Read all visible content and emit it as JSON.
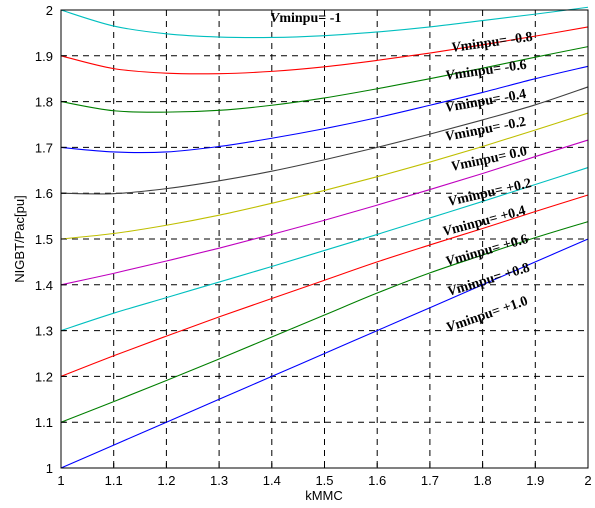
{
  "chart_data": {
    "type": "line",
    "xlabel": "kMMC",
    "ylabel": "NIGBT/Pac[pu]",
    "xlim": [
      1,
      2
    ],
    "ylim": [
      1,
      2
    ],
    "xticks": [
      "1",
      "1.1",
      "1.2",
      "1.3",
      "1.4",
      "1.5",
      "1.6",
      "1.7",
      "1.8",
      "1.9",
      "2"
    ],
    "yticks": [
      "1",
      "1.1",
      "1.2",
      "1.3",
      "1.4",
      "1.5",
      "1.6",
      "1.7",
      "1.8",
      "1.9",
      "2"
    ],
    "grid": true,
    "grid_style": "dashed",
    "x": [
      1.0,
      1.1,
      1.2,
      1.3,
      1.4,
      1.5,
      1.6,
      1.7,
      1.8,
      1.9,
      2.0
    ],
    "series": [
      {
        "name": "-1",
        "color": "#00bfbf",
        "values": [
          2.0,
          1.965,
          1.948,
          1.941,
          1.94,
          1.944,
          1.952,
          1.963,
          1.977,
          1.991,
          2.006
        ]
      },
      {
        "name": "-0.8",
        "color": "#ff0000",
        "values": [
          1.9,
          1.872,
          1.862,
          1.861,
          1.866,
          1.876,
          1.89,
          1.906,
          1.924,
          1.943,
          1.963
        ]
      },
      {
        "name": "-0.6",
        "color": "#007f00",
        "values": [
          1.8,
          1.78,
          1.777,
          1.781,
          1.792,
          1.808,
          1.828,
          1.85,
          1.873,
          1.897,
          1.92
        ]
      },
      {
        "name": "-0.4",
        "color": "#0000ff",
        "values": [
          1.7,
          1.69,
          1.69,
          1.702,
          1.72,
          1.741,
          1.765,
          1.792,
          1.82,
          1.85,
          1.877
        ]
      },
      {
        "name": "-0.2",
        "color": "#3f3f3f",
        "values": [
          1.6,
          1.599,
          1.61,
          1.627,
          1.648,
          1.673,
          1.7,
          1.729,
          1.76,
          1.793,
          1.832
        ]
      },
      {
        "name": "0.0",
        "color": "#bfbf00",
        "values": [
          1.5,
          1.512,
          1.53,
          1.552,
          1.578,
          1.606,
          1.636,
          1.668,
          1.702,
          1.738,
          1.775
        ]
      },
      {
        "name": "+0.2",
        "color": "#bf00bf",
        "values": [
          1.4,
          1.425,
          1.452,
          1.48,
          1.51,
          1.541,
          1.574,
          1.608,
          1.643,
          1.68,
          1.716
        ]
      },
      {
        "name": "+0.4",
        "color": "#00bfbf",
        "values": [
          1.3,
          1.338,
          1.372,
          1.406,
          1.44,
          1.475,
          1.51,
          1.546,
          1.582,
          1.619,
          1.656
        ]
      },
      {
        "name": "+0.6",
        "color": "#ff0000",
        "values": [
          1.2,
          1.245,
          1.288,
          1.33,
          1.37,
          1.41,
          1.45,
          1.487,
          1.523,
          1.56,
          1.596
        ]
      },
      {
        "name": "+0.8",
        "color": "#007f00",
        "values": [
          1.1,
          1.145,
          1.191,
          1.238,
          1.286,
          1.334,
          1.382,
          1.426,
          1.465,
          1.503,
          1.538
        ]
      },
      {
        "name": "+1.0",
        "color": "#0000ff",
        "values": [
          1.0,
          1.05,
          1.1,
          1.15,
          1.2,
          1.25,
          1.3,
          1.35,
          1.4,
          1.45,
          1.5
        ]
      }
    ],
    "annotations": [
      {
        "prefix": "V",
        "text": "minpu= -1"
      },
      {
        "prefix": "V",
        "text": "minpu= -0.8"
      },
      {
        "prefix": "V",
        "text": "minpu= -0.6"
      },
      {
        "prefix": "V",
        "text": "minpu= -0.4"
      },
      {
        "prefix": "V",
        "text": "minpu= -0.2"
      },
      {
        "prefix": "V",
        "text": "minpu=  0.0"
      },
      {
        "prefix": "V",
        "text": "minpu= +0.2"
      },
      {
        "prefix": "V",
        "text": "minpu=  +0.4"
      },
      {
        "prefix": "V",
        "text": "minpu=  +0.6"
      },
      {
        "prefix": "V",
        "text": "minpu=  +0.8"
      },
      {
        "prefix": "V",
        "text": "minpu= +1.0"
      }
    ]
  }
}
